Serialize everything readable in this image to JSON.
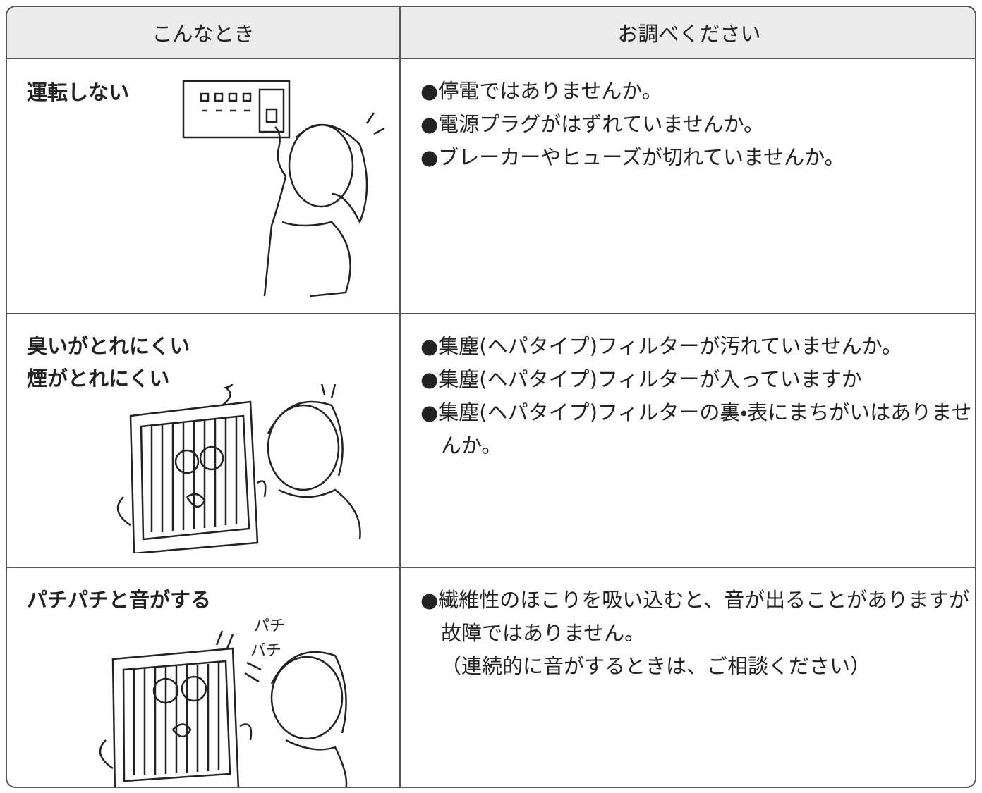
{
  "header": {
    "columns": [
      "こんなとき",
      "お調べください"
    ]
  },
  "rows": [
    {
      "symptom": [
        "運転しない"
      ],
      "checks": [
        "●停電ではありませんか。",
        "●電源プラグがはずれていませんか。",
        "●ブレーカーやヒューズが切れていませんか。"
      ]
    },
    {
      "symptom": [
        "臭いがとれにくい",
        "煙がとれにくい"
      ],
      "checks": [
        "●集塵(ヘパタイプ)フィルターが汚れていませんか。",
        "●集塵(ヘパタイプ)フィルターが入っていますか",
        "●集塵(ヘパタイプ)フィルターの裏・表にまちがいはありませんか。"
      ]
    },
    {
      "symptom": [
        "パチパチと音がする"
      ],
      "checks": [
        "●繊維性のほこりを吸い込むと、音が出ることがありますが故障ではありません。",
        "（連続的に音がするときは、ご相談ください）"
      ],
      "sounds": [
        "パチ",
        "パチ"
      ]
    }
  ]
}
